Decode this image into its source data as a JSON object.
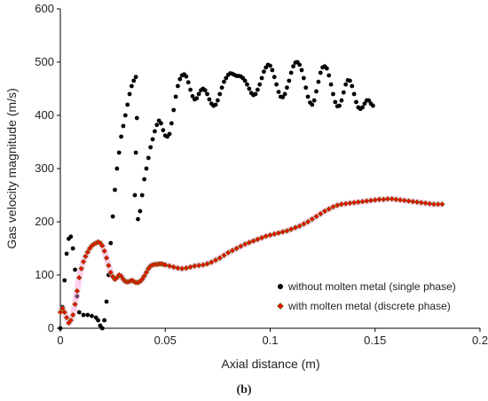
{
  "chart_data": {
    "type": "scatter",
    "xlabel": "Axial distance (m)",
    "ylabel": "Gas velocity magnitude (m/s)",
    "xlim": [
      0,
      0.2
    ],
    "ylim": [
      0,
      600
    ],
    "xticks": [
      0,
      0.05,
      0.1,
      0.15,
      0.2
    ],
    "xtick_labels": [
      "0",
      "0.05",
      "0.1",
      "0.15",
      "0.2"
    ],
    "yticks": [
      0,
      100,
      200,
      300,
      400,
      500,
      600
    ],
    "ytick_labels": [
      "0",
      "100",
      "200",
      "300",
      "400",
      "500",
      "600"
    ],
    "grid": false,
    "legend_position": "lower-right",
    "caption": "(b)",
    "series": [
      {
        "name": "without molten metal (single phase)",
        "color": "#000000",
        "marker": "circle",
        "points": [
          [
            0.0,
            0
          ],
          [
            0.001,
            40
          ],
          [
            0.002,
            90
          ],
          [
            0.003,
            140
          ],
          [
            0.004,
            168
          ],
          [
            0.005,
            172
          ],
          [
            0.006,
            150
          ],
          [
            0.007,
            110
          ],
          [
            0.008,
            60
          ],
          [
            0.009,
            30
          ],
          [
            0.011,
            25
          ],
          [
            0.013,
            25
          ],
          [
            0.015,
            23
          ],
          [
            0.017,
            20
          ],
          [
            0.018,
            15
          ],
          [
            0.019,
            5
          ],
          [
            0.02,
            0
          ],
          [
            0.021,
            15
          ],
          [
            0.022,
            50
          ],
          [
            0.023,
            100
          ],
          [
            0.024,
            160
          ],
          [
            0.025,
            210
          ],
          [
            0.026,
            260
          ],
          [
            0.027,
            300
          ],
          [
            0.028,
            330
          ],
          [
            0.029,
            360
          ],
          [
            0.03,
            380
          ],
          [
            0.031,
            400
          ],
          [
            0.032,
            420
          ],
          [
            0.033,
            440
          ],
          [
            0.034,
            455
          ],
          [
            0.035,
            465
          ],
          [
            0.036,
            472
          ],
          [
            0.0355,
            250
          ],
          [
            0.036,
            330
          ],
          [
            0.0365,
            395
          ],
          [
            0.037,
            205
          ],
          [
            0.038,
            220
          ],
          [
            0.039,
            250
          ],
          [
            0.04,
            280
          ],
          [
            0.041,
            300
          ],
          [
            0.042,
            320
          ],
          [
            0.043,
            340
          ],
          [
            0.044,
            355
          ],
          [
            0.045,
            370
          ],
          [
            0.046,
            382
          ],
          [
            0.047,
            390
          ],
          [
            0.048,
            385
          ],
          [
            0.049,
            372
          ],
          [
            0.05,
            362
          ],
          [
            0.051,
            360
          ],
          [
            0.052,
            365
          ],
          [
            0.053,
            385
          ],
          [
            0.054,
            410
          ],
          [
            0.055,
            435
          ],
          [
            0.056,
            455
          ],
          [
            0.057,
            468
          ],
          [
            0.058,
            475
          ],
          [
            0.059,
            477
          ],
          [
            0.06,
            473
          ],
          [
            0.061,
            462
          ],
          [
            0.062,
            448
          ],
          [
            0.063,
            436
          ],
          [
            0.064,
            430
          ],
          [
            0.065,
            432
          ],
          [
            0.066,
            440
          ],
          [
            0.067,
            447
          ],
          [
            0.068,
            450
          ],
          [
            0.069,
            447
          ],
          [
            0.07,
            440
          ],
          [
            0.071,
            430
          ],
          [
            0.072,
            422
          ],
          [
            0.073,
            418
          ],
          [
            0.074,
            420
          ],
          [
            0.075,
            428
          ],
          [
            0.076,
            440
          ],
          [
            0.077,
            452
          ],
          [
            0.078,
            463
          ],
          [
            0.079,
            470
          ],
          [
            0.08,
            476
          ],
          [
            0.081,
            479
          ],
          [
            0.082,
            478
          ],
          [
            0.083,
            476
          ],
          [
            0.084,
            474
          ],
          [
            0.085,
            474
          ],
          [
            0.086,
            473
          ],
          [
            0.087,
            470
          ],
          [
            0.088,
            465
          ],
          [
            0.089,
            458
          ],
          [
            0.09,
            450
          ],
          [
            0.091,
            442
          ],
          [
            0.092,
            438
          ],
          [
            0.093,
            440
          ],
          [
            0.094,
            448
          ],
          [
            0.095,
            458
          ],
          [
            0.096,
            470
          ],
          [
            0.097,
            482
          ],
          [
            0.098,
            490
          ],
          [
            0.099,
            495
          ],
          [
            0.1,
            493
          ],
          [
            0.101,
            485
          ],
          [
            0.102,
            472
          ],
          [
            0.103,
            458
          ],
          [
            0.104,
            444
          ],
          [
            0.105,
            435
          ],
          [
            0.106,
            434
          ],
          [
            0.107,
            440
          ],
          [
            0.108,
            452
          ],
          [
            0.109,
            465
          ],
          [
            0.11,
            480
          ],
          [
            0.111,
            492
          ],
          [
            0.112,
            499
          ],
          [
            0.113,
            500
          ],
          [
            0.114,
            495
          ],
          [
            0.115,
            485
          ],
          [
            0.116,
            470
          ],
          [
            0.117,
            452
          ],
          [
            0.118,
            435
          ],
          [
            0.119,
            424
          ],
          [
            0.12,
            420
          ],
          [
            0.121,
            428
          ],
          [
            0.122,
            445
          ],
          [
            0.123,
            463
          ],
          [
            0.124,
            480
          ],
          [
            0.125,
            490
          ],
          [
            0.126,
            492
          ],
          [
            0.127,
            488
          ],
          [
            0.128,
            475
          ],
          [
            0.129,
            458
          ],
          [
            0.13,
            440
          ],
          [
            0.131,
            425
          ],
          [
            0.132,
            417
          ],
          [
            0.133,
            418
          ],
          [
            0.134,
            428
          ],
          [
            0.135,
            443
          ],
          [
            0.136,
            458
          ],
          [
            0.137,
            466
          ],
          [
            0.138,
            465
          ],
          [
            0.139,
            455
          ],
          [
            0.14,
            440
          ],
          [
            0.141,
            425
          ],
          [
            0.142,
            415
          ],
          [
            0.143,
            412
          ],
          [
            0.144,
            415
          ],
          [
            0.145,
            422
          ],
          [
            0.146,
            428
          ],
          [
            0.147,
            428
          ],
          [
            0.148,
            422
          ],
          [
            0.149,
            418
          ]
        ]
      },
      {
        "name": "with molten metal (discrete phase)",
        "color": "#ff0000",
        "edge_color": "#7a5a00",
        "marker": "diamond",
        "points": [
          [
            0.0,
            30
          ],
          [
            0.001,
            37
          ],
          [
            0.002,
            30
          ],
          [
            0.003,
            20
          ],
          [
            0.004,
            10
          ],
          [
            0.005,
            15
          ],
          [
            0.006,
            25
          ],
          [
            0.007,
            45
          ],
          [
            0.008,
            70
          ],
          [
            0.009,
            95
          ],
          [
            0.01,
            112
          ],
          [
            0.011,
            125
          ],
          [
            0.012,
            135
          ],
          [
            0.013,
            143
          ],
          [
            0.014,
            150
          ],
          [
            0.015,
            155
          ],
          [
            0.016,
            158
          ],
          [
            0.017,
            160
          ],
          [
            0.018,
            162
          ],
          [
            0.019,
            160
          ],
          [
            0.02,
            155
          ],
          [
            0.021,
            145
          ],
          [
            0.022,
            132
          ],
          [
            0.023,
            118
          ],
          [
            0.024,
            105
          ],
          [
            0.025,
            97
          ],
          [
            0.026,
            92
          ],
          [
            0.027,
            95
          ],
          [
            0.028,
            100
          ],
          [
            0.029,
            98
          ],
          [
            0.03,
            92
          ],
          [
            0.031,
            88
          ],
          [
            0.032,
            87
          ],
          [
            0.033,
            88
          ],
          [
            0.034,
            90
          ],
          [
            0.035,
            88
          ],
          [
            0.036,
            86
          ],
          [
            0.037,
            86
          ],
          [
            0.038,
            88
          ],
          [
            0.039,
            92
          ],
          [
            0.04,
            98
          ],
          [
            0.041,
            105
          ],
          [
            0.042,
            112
          ],
          [
            0.043,
            117
          ],
          [
            0.044,
            119
          ],
          [
            0.045,
            120
          ],
          [
            0.046,
            120
          ],
          [
            0.047,
            121
          ],
          [
            0.048,
            121
          ],
          [
            0.049,
            120
          ],
          [
            0.05,
            119
          ],
          [
            0.052,
            117
          ],
          [
            0.054,
            115
          ],
          [
            0.056,
            113
          ],
          [
            0.058,
            112
          ],
          [
            0.06,
            113
          ],
          [
            0.062,
            115
          ],
          [
            0.064,
            117
          ],
          [
            0.066,
            118
          ],
          [
            0.068,
            119
          ],
          [
            0.07,
            121
          ],
          [
            0.072,
            124
          ],
          [
            0.074,
            128
          ],
          [
            0.076,
            132
          ],
          [
            0.078,
            137
          ],
          [
            0.08,
            142
          ],
          [
            0.082,
            146
          ],
          [
            0.084,
            150
          ],
          [
            0.086,
            154
          ],
          [
            0.088,
            158
          ],
          [
            0.09,
            161
          ],
          [
            0.092,
            164
          ],
          [
            0.094,
            167
          ],
          [
            0.096,
            170
          ],
          [
            0.098,
            173
          ],
          [
            0.1,
            175
          ],
          [
            0.102,
            177
          ],
          [
            0.104,
            179
          ],
          [
            0.106,
            181
          ],
          [
            0.108,
            183
          ],
          [
            0.11,
            186
          ],
          [
            0.112,
            189
          ],
          [
            0.114,
            192
          ],
          [
            0.116,
            196
          ],
          [
            0.118,
            200
          ],
          [
            0.12,
            205
          ],
          [
            0.122,
            210
          ],
          [
            0.124,
            215
          ],
          [
            0.126,
            220
          ],
          [
            0.128,
            224
          ],
          [
            0.13,
            228
          ],
          [
            0.132,
            231
          ],
          [
            0.134,
            233
          ],
          [
            0.136,
            234
          ],
          [
            0.138,
            235
          ],
          [
            0.14,
            236
          ],
          [
            0.142,
            237
          ],
          [
            0.144,
            238
          ],
          [
            0.146,
            239
          ],
          [
            0.148,
            240
          ],
          [
            0.15,
            241
          ],
          [
            0.152,
            242
          ],
          [
            0.154,
            242
          ],
          [
            0.156,
            243
          ],
          [
            0.158,
            243
          ],
          [
            0.16,
            242
          ],
          [
            0.162,
            241
          ],
          [
            0.164,
            240
          ],
          [
            0.166,
            239
          ],
          [
            0.168,
            238
          ],
          [
            0.17,
            237
          ],
          [
            0.172,
            236
          ],
          [
            0.174,
            235
          ],
          [
            0.176,
            234
          ],
          [
            0.178,
            233
          ],
          [
            0.18,
            233
          ],
          [
            0.182,
            233
          ]
        ]
      }
    ]
  }
}
